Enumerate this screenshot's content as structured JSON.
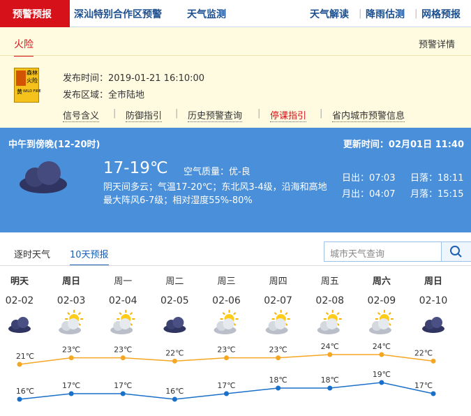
{
  "nav": {
    "active": "预警预报",
    "left": [
      "深汕特别合作区预警",
      "天气监测"
    ],
    "right": [
      "天气解读",
      "降雨估测",
      "网格预报"
    ]
  },
  "warning": {
    "tab": "火险",
    "detail_link": "预警详情",
    "icon": {
      "lines": [
        "森林",
        "火险"
      ],
      "level": "黄",
      "en": "WILD FIRE"
    },
    "time": "发布时间：2019-01-21 16:10:00",
    "area": "发布区域：全市陆地",
    "links": [
      "信号含义",
      "防御指引",
      "历史预警查询",
      "停课指引",
      "省内城市预警信息"
    ]
  },
  "current": {
    "period": "中午到傍晚(12-20时)",
    "updated": "更新时间：02月01日 11:40",
    "temp": "17-19℃",
    "air": "空气质量：优-良",
    "desc": "阴天间多云；气温17-20℃；东北风3-4级，沿海和高地最大阵风6-7级；相对湿度55%-80%",
    "sunrise": "日出：07:03",
    "sunset": "日落：18:11",
    "moonrise": "月出：04:07",
    "moonset": "月落：15:15"
  },
  "forecast": {
    "tabs": [
      "逐时天气",
      "10天预报"
    ],
    "search_placeholder": "城市天气查询",
    "days": [
      {
        "name": "明天",
        "date": "02-02"
      },
      {
        "name": "周日",
        "date": "02-03"
      },
      {
        "name": "周一",
        "date": "02-04"
      },
      {
        "name": "周二",
        "date": "02-05"
      },
      {
        "name": "周三",
        "date": "02-06"
      },
      {
        "name": "周四",
        "date": "02-07"
      },
      {
        "name": "周五",
        "date": "02-08"
      },
      {
        "name": "周六",
        "date": "02-09"
      },
      {
        "name": "周日",
        "date": "02-10"
      }
    ],
    "high": {
      "color": "#f5a623",
      "values": [
        21,
        23,
        23,
        22,
        23,
        23,
        24,
        24,
        22
      ],
      "value_labels": [
        "21℃",
        "23℃",
        "23℃",
        "22℃",
        "23℃",
        "23℃",
        "24℃",
        "24℃",
        "22℃"
      ]
    },
    "low": {
      "color": "#1a6fc9",
      "values": [
        16,
        17,
        17,
        16,
        17,
        18,
        18,
        19,
        17
      ],
      "value_labels": [
        "16℃",
        "17℃",
        "17℃",
        "16℃",
        "17℃",
        "18℃",
        "18℃",
        "19℃",
        "17℃"
      ]
    }
  }
}
